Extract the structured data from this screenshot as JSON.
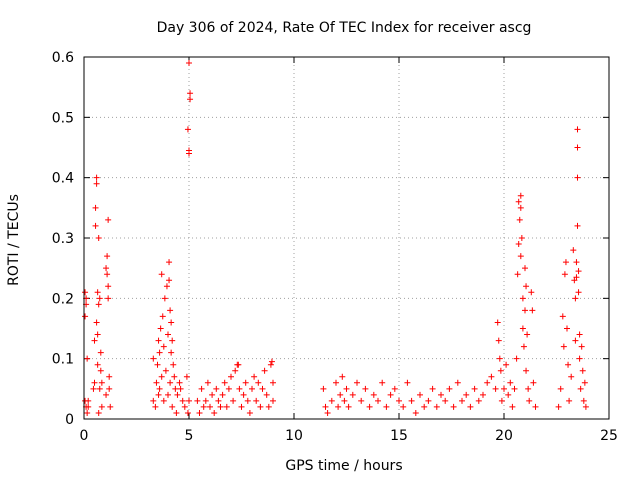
{
  "chart_data": {
    "type": "scatter",
    "title": "Day 306 of 2024, Rate Of TEC Index for receiver ascg",
    "xlabel": "GPS time / hours",
    "ylabel": "ROTI / TECUs",
    "xlim": [
      0,
      25
    ],
    "ylim": [
      0,
      0.6
    ],
    "xticks": [
      0,
      5,
      10,
      15,
      20,
      25
    ],
    "xtick_labels": [
      "0",
      "5",
      "10",
      "15",
      "20",
      "25"
    ],
    "yticks": [
      0,
      0.1,
      0.2,
      0.3,
      0.4,
      0.5,
      0.6
    ],
    "ytick_labels": [
      "0",
      "0.1",
      "0.2",
      "0.3",
      "0.4",
      "0.5",
      "0.6"
    ],
    "grid": true,
    "marker": "+",
    "series": [
      {
        "name": "ROTI",
        "color": "#ff0000",
        "points": [
          [
            0.05,
            0.21
          ],
          [
            0.05,
            0.17
          ],
          [
            0.05,
            0.03
          ],
          [
            0.1,
            0.02
          ],
          [
            0.1,
            0.19
          ],
          [
            0.1,
            0.2
          ],
          [
            0.15,
            0.1
          ],
          [
            0.15,
            0.01
          ],
          [
            0.2,
            0.03
          ],
          [
            0.2,
            0.02
          ],
          [
            0.45,
            0.05
          ],
          [
            0.5,
            0.13
          ],
          [
            0.5,
            0.06
          ],
          [
            0.55,
            0.35
          ],
          [
            0.55,
            0.32
          ],
          [
            0.6,
            0.39
          ],
          [
            0.6,
            0.4
          ],
          [
            0.6,
            0.16
          ],
          [
            0.65,
            0.14
          ],
          [
            0.65,
            0.09
          ],
          [
            0.65,
            0.21
          ],
          [
            0.7,
            0.3
          ],
          [
            0.7,
            0.19
          ],
          [
            0.7,
            0.01
          ],
          [
            0.75,
            0.2
          ],
          [
            0.75,
            0.05
          ],
          [
            0.8,
            0.08
          ],
          [
            0.8,
            0.11
          ],
          [
            0.85,
            0.06
          ],
          [
            0.85,
            0.02
          ],
          [
            1.05,
            0.25
          ],
          [
            1.05,
            0.04
          ],
          [
            1.1,
            0.27
          ],
          [
            1.1,
            0.24
          ],
          [
            1.15,
            0.33
          ],
          [
            1.15,
            0.2
          ],
          [
            1.15,
            0.22
          ],
          [
            1.2,
            0.05
          ],
          [
            1.2,
            0.07
          ],
          [
            1.25,
            0.02
          ],
          [
            3.3,
            0.03
          ],
          [
            3.3,
            0.1
          ],
          [
            3.4,
            0.02
          ],
          [
            3.45,
            0.06
          ],
          [
            3.5,
            0.09
          ],
          [
            3.55,
            0.13
          ],
          [
            3.55,
            0.04
          ],
          [
            3.6,
            0.11
          ],
          [
            3.65,
            0.15
          ],
          [
            3.7,
            0.24
          ],
          [
            3.7,
            0.07
          ],
          [
            3.75,
            0.17
          ],
          [
            3.8,
            0.12
          ],
          [
            3.85,
            0.2
          ],
          [
            3.9,
            0.08
          ],
          [
            3.95,
            0.22
          ],
          [
            4.0,
            0.14
          ],
          [
            4.05,
            0.26
          ],
          [
            4.05,
            0.23
          ],
          [
            4.1,
            0.18
          ],
          [
            4.1,
            0.06
          ],
          [
            4.15,
            0.16
          ],
          [
            4.15,
            0.11
          ],
          [
            4.2,
            0.13
          ],
          [
            4.25,
            0.09
          ],
          [
            4.3,
            0.07
          ],
          [
            4.35,
            0.05
          ],
          [
            4.45,
            0.04
          ],
          [
            4.55,
            0.06
          ],
          [
            4.7,
            0.03
          ],
          [
            3.6,
            0.05
          ],
          [
            3.8,
            0.03
          ],
          [
            4.0,
            0.04
          ],
          [
            4.2,
            0.02
          ],
          [
            4.4,
            0.01
          ],
          [
            4.6,
            0.05
          ],
          [
            4.8,
            0.02
          ],
          [
            4.9,
            0.07
          ],
          [
            5.0,
            0.03
          ],
          [
            4.95,
            0.01
          ],
          [
            5.0,
            0.59
          ],
          [
            5.05,
            0.54
          ],
          [
            5.05,
            0.53
          ],
          [
            4.95,
            0.48
          ],
          [
            5.0,
            0.44
          ],
          [
            5.0,
            0.445
          ],
          [
            5.4,
            0.03
          ],
          [
            5.5,
            0.01
          ],
          [
            5.6,
            0.05
          ],
          [
            5.7,
            0.02
          ],
          [
            5.8,
            0.03
          ],
          [
            5.9,
            0.06
          ],
          [
            6.0,
            0.02
          ],
          [
            6.1,
            0.04
          ],
          [
            6.2,
            0.01
          ],
          [
            6.3,
            0.05
          ],
          [
            6.4,
            0.03
          ],
          [
            6.5,
            0.02
          ],
          [
            6.6,
            0.04
          ],
          [
            6.7,
            0.06
          ],
          [
            6.8,
            0.02
          ],
          [
            6.9,
            0.05
          ],
          [
            7.0,
            0.07
          ],
          [
            7.1,
            0.03
          ],
          [
            7.2,
            0.08
          ],
          [
            7.3,
            0.09
          ],
          [
            7.4,
            0.05
          ],
          [
            7.5,
            0.02
          ],
          [
            7.6,
            0.04
          ],
          [
            7.7,
            0.06
          ],
          [
            7.8,
            0.03
          ],
          [
            7.9,
            0.01
          ],
          [
            8.0,
            0.05
          ],
          [
            8.1,
            0.07
          ],
          [
            8.2,
            0.03
          ],
          [
            8.3,
            0.06
          ],
          [
            8.4,
            0.02
          ],
          [
            8.5,
            0.05
          ],
          [
            8.6,
            0.08
          ],
          [
            8.7,
            0.04
          ],
          [
            8.8,
            0.02
          ],
          [
            8.9,
            0.09
          ],
          [
            9.0,
            0.06
          ],
          [
            9.0,
            0.03
          ],
          [
            7.35,
            0.09
          ],
          [
            8.95,
            0.095
          ],
          [
            11.4,
            0.05
          ],
          [
            11.5,
            0.02
          ],
          [
            11.6,
            0.01
          ],
          [
            11.8,
            0.03
          ],
          [
            12.0,
            0.06
          ],
          [
            12.1,
            0.02
          ],
          [
            12.2,
            0.04
          ],
          [
            12.3,
            0.07
          ],
          [
            12.4,
            0.03
          ],
          [
            12.5,
            0.05
          ],
          [
            12.6,
            0.02
          ],
          [
            12.8,
            0.04
          ],
          [
            13.0,
            0.06
          ],
          [
            13.2,
            0.03
          ],
          [
            13.4,
            0.05
          ],
          [
            13.6,
            0.02
          ],
          [
            13.8,
            0.04
          ],
          [
            14.0,
            0.03
          ],
          [
            14.2,
            0.06
          ],
          [
            14.4,
            0.02
          ],
          [
            14.6,
            0.04
          ],
          [
            14.8,
            0.05
          ],
          [
            15.0,
            0.03
          ],
          [
            15.2,
            0.02
          ],
          [
            15.4,
            0.06
          ],
          [
            15.6,
            0.03
          ],
          [
            15.8,
            0.01
          ],
          [
            16.0,
            0.04
          ],
          [
            16.2,
            0.02
          ],
          [
            16.4,
            0.03
          ],
          [
            16.6,
            0.05
          ],
          [
            16.8,
            0.02
          ],
          [
            17.0,
            0.04
          ],
          [
            17.2,
            0.03
          ],
          [
            17.4,
            0.05
          ],
          [
            17.6,
            0.02
          ],
          [
            17.8,
            0.06
          ],
          [
            18.0,
            0.03
          ],
          [
            18.2,
            0.04
          ],
          [
            18.4,
            0.02
          ],
          [
            18.6,
            0.05
          ],
          [
            18.8,
            0.03
          ],
          [
            19.0,
            0.04
          ],
          [
            19.2,
            0.06
          ],
          [
            19.4,
            0.07
          ],
          [
            19.6,
            0.05
          ],
          [
            19.7,
            0.16
          ],
          [
            19.75,
            0.13
          ],
          [
            19.8,
            0.1
          ],
          [
            19.85,
            0.08
          ],
          [
            19.9,
            0.03
          ],
          [
            20.0,
            0.05
          ],
          [
            20.1,
            0.09
          ],
          [
            20.2,
            0.04
          ],
          [
            20.3,
            0.06
          ],
          [
            20.4,
            0.02
          ],
          [
            20.5,
            0.05
          ],
          [
            20.6,
            0.1
          ],
          [
            20.65,
            0.24
          ],
          [
            20.7,
            0.29
          ],
          [
            20.7,
            0.36
          ],
          [
            20.75,
            0.33
          ],
          [
            20.8,
            0.27
          ],
          [
            20.8,
            0.35
          ],
          [
            20.85,
            0.3
          ],
          [
            20.9,
            0.2
          ],
          [
            20.9,
            0.15
          ],
          [
            20.95,
            0.12
          ],
          [
            21.0,
            0.25
          ],
          [
            21.0,
            0.18
          ],
          [
            21.05,
            0.22
          ],
          [
            21.05,
            0.08
          ],
          [
            21.1,
            0.14
          ],
          [
            21.15,
            0.05
          ],
          [
            21.2,
            0.03
          ],
          [
            21.3,
            0.21
          ],
          [
            21.35,
            0.18
          ],
          [
            21.4,
            0.06
          ],
          [
            21.5,
            0.02
          ],
          [
            20.8,
            0.37
          ],
          [
            22.6,
            0.02
          ],
          [
            22.7,
            0.05
          ],
          [
            22.8,
            0.17
          ],
          [
            22.85,
            0.12
          ],
          [
            22.9,
            0.24
          ],
          [
            22.95,
            0.26
          ],
          [
            23.0,
            0.15
          ],
          [
            23.05,
            0.09
          ],
          [
            23.1,
            0.03
          ],
          [
            23.2,
            0.07
          ],
          [
            23.3,
            0.28
          ],
          [
            23.35,
            0.23
          ],
          [
            23.4,
            0.2
          ],
          [
            23.45,
            0.26
          ],
          [
            23.5,
            0.48
          ],
          [
            23.5,
            0.45
          ],
          [
            23.5,
            0.4
          ],
          [
            23.5,
            0.32
          ],
          [
            23.55,
            0.21
          ],
          [
            23.6,
            0.14
          ],
          [
            23.6,
            0.1
          ],
          [
            23.65,
            0.05
          ],
          [
            23.7,
            0.12
          ],
          [
            23.75,
            0.08
          ],
          [
            23.8,
            0.03
          ],
          [
            23.85,
            0.06
          ],
          [
            23.9,
            0.02
          ],
          [
            23.55,
            0.245
          ],
          [
            23.45,
            0.235
          ],
          [
            23.4,
            0.13
          ]
        ]
      }
    ]
  }
}
